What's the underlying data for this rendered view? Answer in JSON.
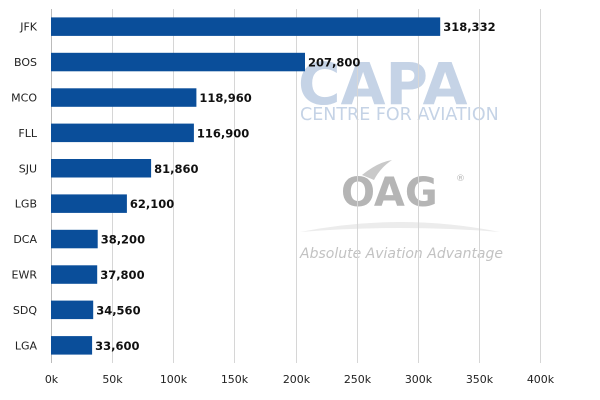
{
  "chart_data": {
    "type": "bar",
    "orientation": "horizontal",
    "categories": [
      "JFK",
      "BOS",
      "MCO",
      "FLL",
      "SJU",
      "LGB",
      "DCA",
      "EWR",
      "SDQ",
      "LGA"
    ],
    "values": [
      318332,
      207800,
      118960,
      116900,
      81860,
      62100,
      38200,
      37800,
      34560,
      33600
    ],
    "value_labels": [
      "318,332",
      "207,800",
      "118,960",
      "116,900",
      "81,860",
      "62,100",
      "38,200",
      "37,800",
      "34,560",
      "33,600"
    ],
    "x_ticks": [
      "0k",
      "50k",
      "100k",
      "150k",
      "200k",
      "250k",
      "300k",
      "350k",
      "400k"
    ],
    "xlim": [
      0,
      400000
    ],
    "grid": true,
    "bar_color": "#0a4e9a",
    "title": "",
    "xlabel": "",
    "ylabel": ""
  },
  "watermarks": {
    "capa": {
      "logo": "CAPA",
      "subtitle": "CENTRE FOR AVIATION",
      "color": "#c5d3e6"
    },
    "oag": {
      "logo": "OAG",
      "registered": "®",
      "tagline": "Absolute Aviation Advantage",
      "color": "#b5b5b5"
    }
  }
}
